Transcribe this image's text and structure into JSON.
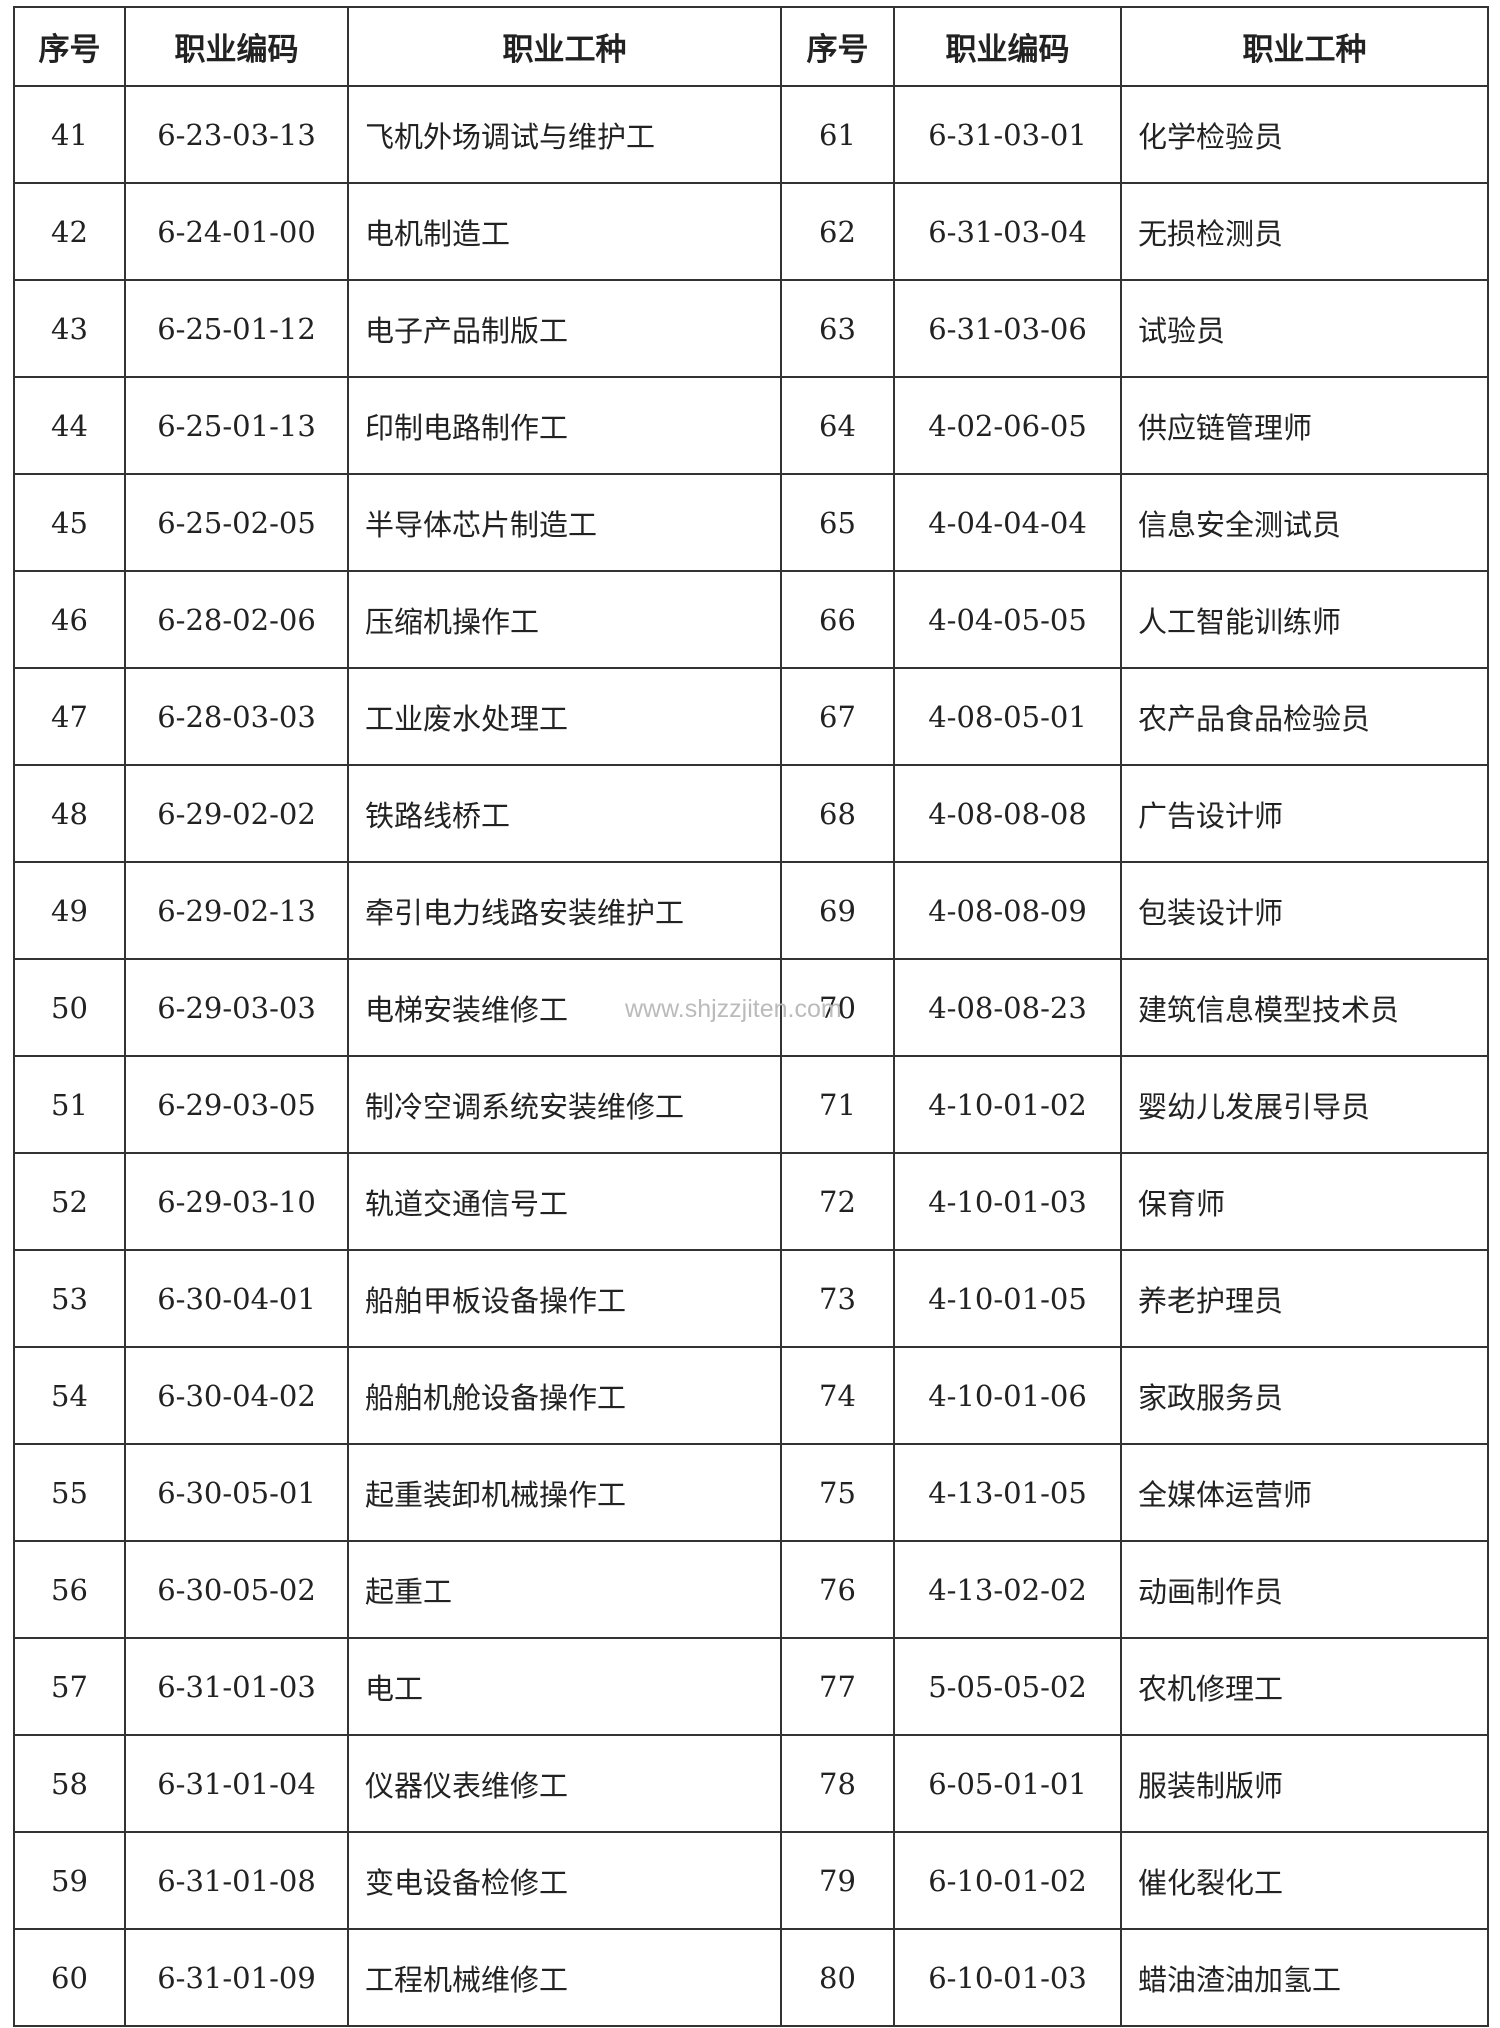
{
  "table": {
    "header": [
      "序号",
      "职业编码",
      "职业工种",
      "序号",
      "职业编码",
      "职业工种"
    ],
    "rows": [
      [
        41,
        "6-23-03-13",
        "飞机外场调试与维护工",
        61,
        "6-31-03-01",
        "化学检验员"
      ],
      [
        42,
        "6-24-01-00",
        "电机制造工",
        62,
        "6-31-03-04",
        "无损检测员"
      ],
      [
        43,
        "6-25-01-12",
        "电子产品制版工",
        63,
        "6-31-03-06",
        "试验员"
      ],
      [
        44,
        "6-25-01-13",
        "印制电路制作工",
        64,
        "4-02-06-05",
        "供应链管理师"
      ],
      [
        45,
        "6-25-02-05",
        "半导体芯片制造工",
        65,
        "4-04-04-04",
        "信息安全测试员"
      ],
      [
        46,
        "6-28-02-06",
        "压缩机操作工",
        66,
        "4-04-05-05",
        "人工智能训练师"
      ],
      [
        47,
        "6-28-03-03",
        "工业废水处理工",
        67,
        "4-08-05-01",
        "农产品食品检验员"
      ],
      [
        48,
        "6-29-02-02",
        "铁路线桥工",
        68,
        "4-08-08-08",
        "广告设计师"
      ],
      [
        49,
        "6-29-02-13",
        "牵引电力线路安装维护工",
        69,
        "4-08-08-09",
        "包装设计师"
      ],
      [
        50,
        "6-29-03-03",
        "电梯安装维修工",
        70,
        "4-08-08-23",
        "建筑信息模型技术员"
      ],
      [
        51,
        "6-29-03-05",
        "制冷空调系统安装维修工",
        71,
        "4-10-01-02",
        "婴幼儿发展引导员"
      ],
      [
        52,
        "6-29-03-10",
        "轨道交通信号工",
        72,
        "4-10-01-03",
        "保育师"
      ],
      [
        53,
        "6-30-04-01",
        "船舶甲板设备操作工",
        73,
        "4-10-01-05",
        "养老护理员"
      ],
      [
        54,
        "6-30-04-02",
        "船舶机舱设备操作工",
        74,
        "4-10-01-06",
        "家政服务员"
      ],
      [
        55,
        "6-30-05-01",
        "起重装卸机械操作工",
        75,
        "4-13-01-05",
        "全媒体运营师"
      ],
      [
        56,
        "6-30-05-02",
        "起重工",
        76,
        "4-13-02-02",
        "动画制作员"
      ],
      [
        57,
        "6-31-01-03",
        "电工",
        77,
        "5-05-05-02",
        "农机修理工"
      ],
      [
        58,
        "6-31-01-04",
        "仪器仪表维修工",
        78,
        "6-05-01-01",
        "服装制版师"
      ],
      [
        59,
        "6-31-01-08",
        "变电设备检修工",
        79,
        "6-10-01-02",
        "催化裂化工"
      ],
      [
        60,
        "6-31-01-09",
        "工程机械维修工",
        80,
        "6-10-01-03",
        "蜡油渣油加氢工"
      ]
    ]
  },
  "watermark": "www.shjzzjiten.com"
}
